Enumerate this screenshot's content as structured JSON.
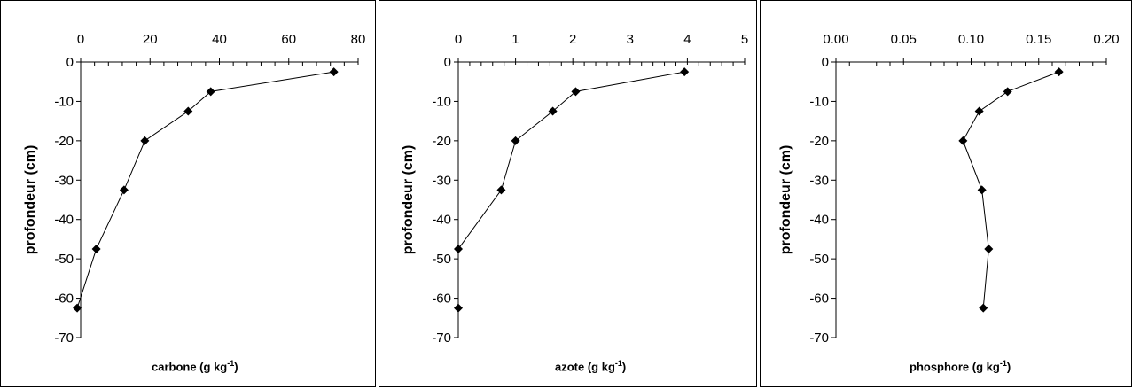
{
  "chart_data": [
    {
      "type": "line",
      "xlabel_prefix": "carbone (g kg",
      "xlabel_sup": "-1",
      "xlabel_suffix": ")",
      "ylabel": "profondeur (cm)",
      "xlim": [
        0,
        80
      ],
      "xticks": [
        "0",
        "20",
        "40",
        "60",
        "80"
      ],
      "ylim": [
        -70,
        0
      ],
      "yticks": [
        "0",
        "-10",
        "-20",
        "-30",
        "-40",
        "-50",
        "-60",
        "-70"
      ],
      "x_axis_position": "top",
      "grid": false,
      "series": [
        {
          "x": [
            73,
            37.5,
            31,
            18.5,
            12.5,
            4.5,
            -1
          ],
          "y": [
            -2.5,
            -7.5,
            -12.5,
            -20,
            -32.5,
            -47.5,
            -62.5
          ]
        }
      ]
    },
    {
      "type": "line",
      "xlabel_prefix": "azote (g kg",
      "xlabel_sup": "-1",
      "xlabel_suffix": ")",
      "ylabel": "profondeur (cm)",
      "xlim": [
        0,
        5
      ],
      "xticks": [
        "0",
        "1",
        "2",
        "3",
        "4",
        "5"
      ],
      "ylim": [
        -70,
        0
      ],
      "yticks": [
        "0",
        "-10",
        "-20",
        "-30",
        "-40",
        "-50",
        "-60",
        "-70"
      ],
      "x_axis_position": "top",
      "grid": false,
      "series": [
        {
          "x": [
            3.95,
            2.05,
            1.65,
            1.0,
            0.75,
            0.0
          ],
          "y": [
            -2.5,
            -7.5,
            -12.5,
            -20,
            -32.5,
            -47.5
          ],
          "extra_point": {
            "x": 0.0,
            "y": -62.5
          }
        }
      ]
    },
    {
      "type": "line",
      "xlabel_prefix": "phosphore (g kg",
      "xlabel_sup": "-1",
      "xlabel_suffix": ")",
      "ylabel": "profondeur (cm)",
      "xlim": [
        0,
        0.2
      ],
      "xticks": [
        "0.00",
        "0.05",
        "0.10",
        "0.15",
        "0.20"
      ],
      "ylim": [
        -70,
        0
      ],
      "yticks": [
        "0",
        "-10",
        "-20",
        "-30",
        "-40",
        "-50",
        "-60",
        "-70"
      ],
      "x_axis_position": "top",
      "grid": false,
      "series": [
        {
          "x": [
            0.165,
            0.127,
            0.106,
            0.094,
            0.108,
            0.113,
            0.109
          ],
          "y": [
            -2.5,
            -7.5,
            -12.5,
            -20,
            -32.5,
            -47.5,
            -62.5
          ]
        }
      ]
    }
  ]
}
